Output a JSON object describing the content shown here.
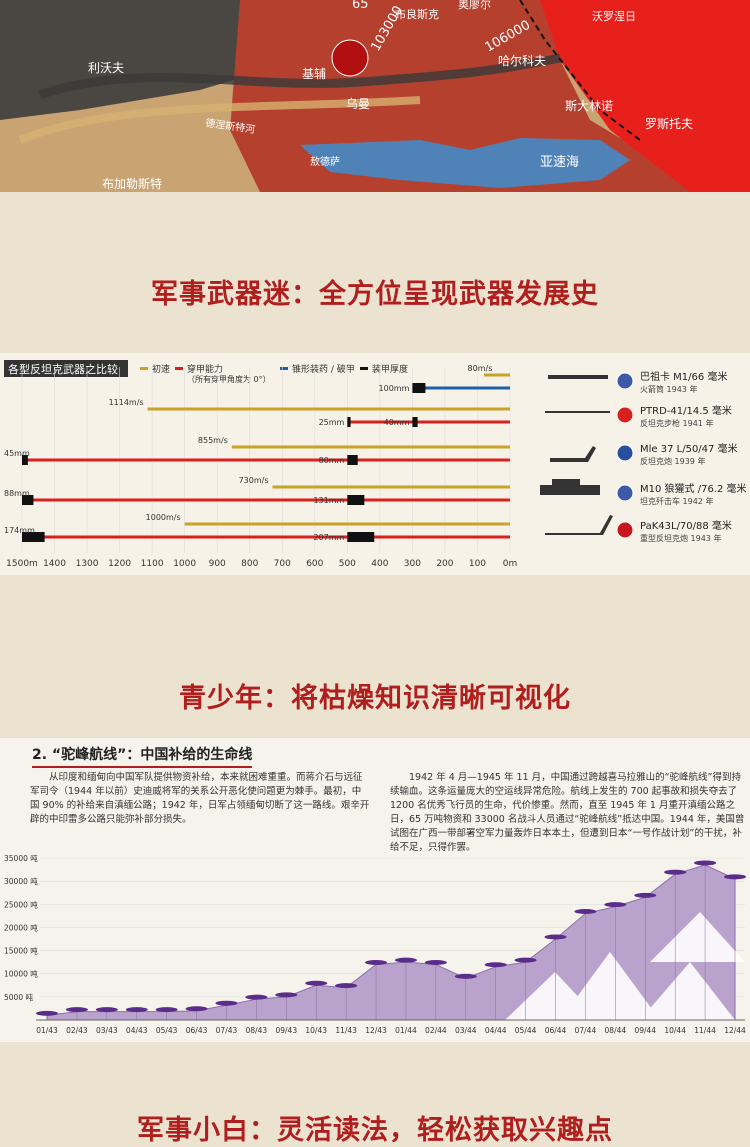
{
  "map": {
    "labels": [
      "奥廖尔",
      "布良斯克",
      "65",
      "103000",
      "106000",
      "沃罗涅日",
      "利沃夫",
      "基辅",
      "哈尔科夫",
      "乌曼",
      "斯大林诺",
      "德涅斯特河",
      "罗斯托夫",
      "敖德萨",
      "亚速海",
      "布加勒斯特"
    ]
  },
  "headings": [
    "军事武器迷：全方位呈现武器发展史",
    "青少年：将枯燥知识清晰可视化",
    "军事小白：灵活读法，轻松获取兴趣点"
  ],
  "weapons_chart": {
    "title": "各型反坦克武器之比较",
    "legend": [
      {
        "name": "初速",
        "color": "#c9a227"
      },
      {
        "name": "穿甲能力",
        "note": "（所有穿甲角度为 0°）",
        "color": "#d8201c"
      },
      {
        "name": "锥形装药 / 破甲",
        "color": "#1f5fa8"
      },
      {
        "name": "装甲厚度",
        "color": "#111111"
      }
    ],
    "xlim": [
      1500,
      0
    ],
    "xticks": [
      {
        "value": 1500,
        "label": "1500m"
      },
      {
        "value": 1400,
        "label": "1400"
      },
      {
        "value": 1300,
        "label": "1300"
      },
      {
        "value": 1200,
        "label": "1200"
      },
      {
        "value": 1100,
        "label": "1100"
      },
      {
        "value": 1000,
        "label": "1000"
      },
      {
        "value": 900,
        "label": "900"
      },
      {
        "value": 800,
        "label": "800"
      },
      {
        "value": 700,
        "label": "700"
      },
      {
        "value": 600,
        "label": "600"
      },
      {
        "value": 500,
        "label": "500"
      },
      {
        "value": 400,
        "label": "400"
      },
      {
        "value": 300,
        "label": "300"
      },
      {
        "value": 200,
        "label": "200"
      },
      {
        "value": 100,
        "label": "100"
      },
      {
        "value": 0,
        "label": "0m"
      }
    ],
    "weapons": [
      {
        "name": "巴祖卡 M1/66 毫米",
        "desc": "火箭筒 1943 年",
        "velocity": 80,
        "velocity_label": "80m/s",
        "color": "#1f5fa8",
        "penetration": [
          {
            "range": 300,
            "thickness": 100,
            "label": "100mm"
          }
        ]
      },
      {
        "name": "PTRD-41/14.5 毫米",
        "desc": "反坦克步枪 1941 年",
        "velocity": 1114,
        "velocity_label": "1114m/s",
        "color": "#d8201c",
        "penetration": [
          {
            "range": 300,
            "thickness": 40,
            "label": "40mm"
          },
          {
            "range": 500,
            "thickness": 25,
            "label": "25mm"
          }
        ]
      },
      {
        "name": "Mle 37 L/50/47 毫米",
        "desc": "反坦克炮 1939 年",
        "velocity": 855,
        "velocity_label": "855m/s",
        "color": "#d8201c",
        "penetration": [
          {
            "range": 500,
            "thickness": 80,
            "label": "80mm"
          },
          {
            "range": 1500,
            "thickness": 45,
            "label": "45mm"
          }
        ]
      },
      {
        "name": "M10 狼獾式 /76.2 毫米",
        "desc": "坦克歼击车 1942 年",
        "velocity": 730,
        "velocity_label": "730m/s",
        "color": "#d8201c",
        "penetration": [
          {
            "range": 500,
            "thickness": 131,
            "label": "131mm"
          },
          {
            "range": 1500,
            "thickness": 88,
            "label": "88mm"
          }
        ]
      },
      {
        "name": "PaK43L/70/88 毫米",
        "desc": "重型反坦克炮 1943 年",
        "velocity": 1000,
        "velocity_label": "1000m/s",
        "color": "#d8201c",
        "penetration": [
          {
            "range": 500,
            "thickness": 207,
            "label": "207mm"
          },
          {
            "range": 1500,
            "thickness": 174,
            "label": "174mm"
          }
        ]
      }
    ]
  },
  "hump": {
    "title": "2. “驼峰航线”：中国补给的生命线",
    "paragraphs": [
      "从印度和缅甸向中国军队提供物资补给，本来就困难重重。而蒋介石与远征军司令（1944 年以前）史迪威将军的关系公开恶化使问题更为棘手。最初，中国 90% 的补给来自滇缅公路；1942 年，日军占领缅甸切断了这一路线。艰辛开辟的中印雷多公路只能弥补部分损失。",
      "1942 年 4 月—1945 年 11 月，中国通过跨越喜马拉雅山的“驼峰航线”得到持续输血。这条运量庞大的空运线异常危险。航线上发生的 700 起事故和损失夺去了 1200 名优秀飞行员的生命，代价惨重。然而，直至 1945 年 1 月重开滇缅公路之日，65 万吨物资和 33000 名战斗人员通过“驼峰航线”抵达中国。1944 年，美国曾试图在广西一带部署空军力量轰炸日本本土，但遭到日本“一号作战计划”的干扰，补给不足，只得作罢。"
    ],
    "chart": {
      "type": "area",
      "color": "#b9a3cc",
      "categories": [
        "01/43",
        "02/43",
        "03/43",
        "04/43",
        "05/43",
        "06/43",
        "07/43",
        "08/43",
        "09/43",
        "10/43",
        "11/43",
        "12/43",
        "01/44",
        "02/44",
        "03/44",
        "04/44",
        "05/44",
        "06/44",
        "07/44",
        "08/44",
        "09/44",
        "10/44",
        "11/44",
        "12/44"
      ],
      "values": [
        1000,
        1800,
        1800,
        1800,
        1800,
        2000,
        3200,
        4500,
        5000,
        7500,
        7000,
        12000,
        12500,
        12000,
        9000,
        11500,
        12500,
        17500,
        23000,
        24500,
        26500,
        31500,
        33500,
        30500
      ],
      "ylim": [
        0,
        35000
      ],
      "yticks": [
        {
          "value": 5000,
          "label": "5000 吨"
        },
        {
          "value": 10000,
          "label": "10000 吨"
        },
        {
          "value": 15000,
          "label": "15000 吨"
        },
        {
          "value": 20000,
          "label": "20000 吨"
        },
        {
          "value": 25000,
          "label": "25000 吨"
        },
        {
          "value": 30000,
          "label": "30000 吨"
        },
        {
          "value": 35000,
          "label": "35000 吨"
        }
      ]
    }
  }
}
